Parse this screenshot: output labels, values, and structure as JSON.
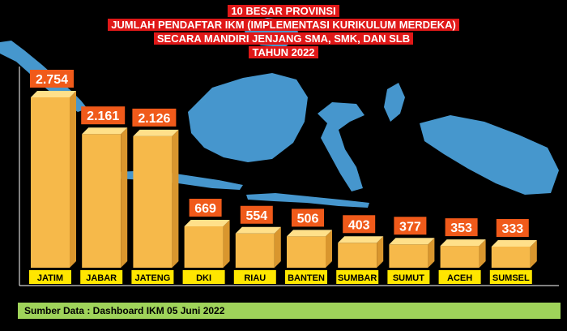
{
  "title_lines": [
    "10 BESAR PROVINSI",
    "JUMLAH PENDAFTAR IKM (IMPLEMENTASI KURIKULUM MERDEKA)",
    "SECARA MANDIRI JENJANG SMA, SMK, DAN SLB",
    "TAHUN 2022"
  ],
  "source": "Sumber Data : Dashboard IKM 05 Juni 2022",
  "colors": {
    "background": "#000000",
    "title_bg": "#e01818",
    "value_label_bg": "#f05a1a",
    "bar_front": "#f6b94a",
    "bar_side": "#d9962e",
    "bar_top": "#ffe08a",
    "category_label_bg": "#ffe600",
    "source_bg": "#9fd35a",
    "map": "#4a9fd8"
  },
  "chart_data": {
    "type": "bar",
    "categories": [
      "JATIM",
      "JABAR",
      "JATENG",
      "DKI",
      "RIAU",
      "BANTEN",
      "SUMBAR",
      "SUMUT",
      "ACEH",
      "SUMSEL"
    ],
    "values": [
      2754,
      2161,
      2126,
      669,
      554,
      506,
      403,
      377,
      353,
      333
    ],
    "value_labels": [
      "2.754",
      "2.161",
      "2.126",
      "669",
      "554",
      "506",
      "403",
      "377",
      "353",
      "333"
    ],
    "title": "10 BESAR PROVINSI JUMLAH PENDAFTAR IKM (IMPLEMENTASI KURIKULUM MERDEKA) SECARA MANDIRI JENJANG SMA, SMK, DAN SLB TAHUN 2022",
    "xlabel": "",
    "ylabel": ""
  }
}
